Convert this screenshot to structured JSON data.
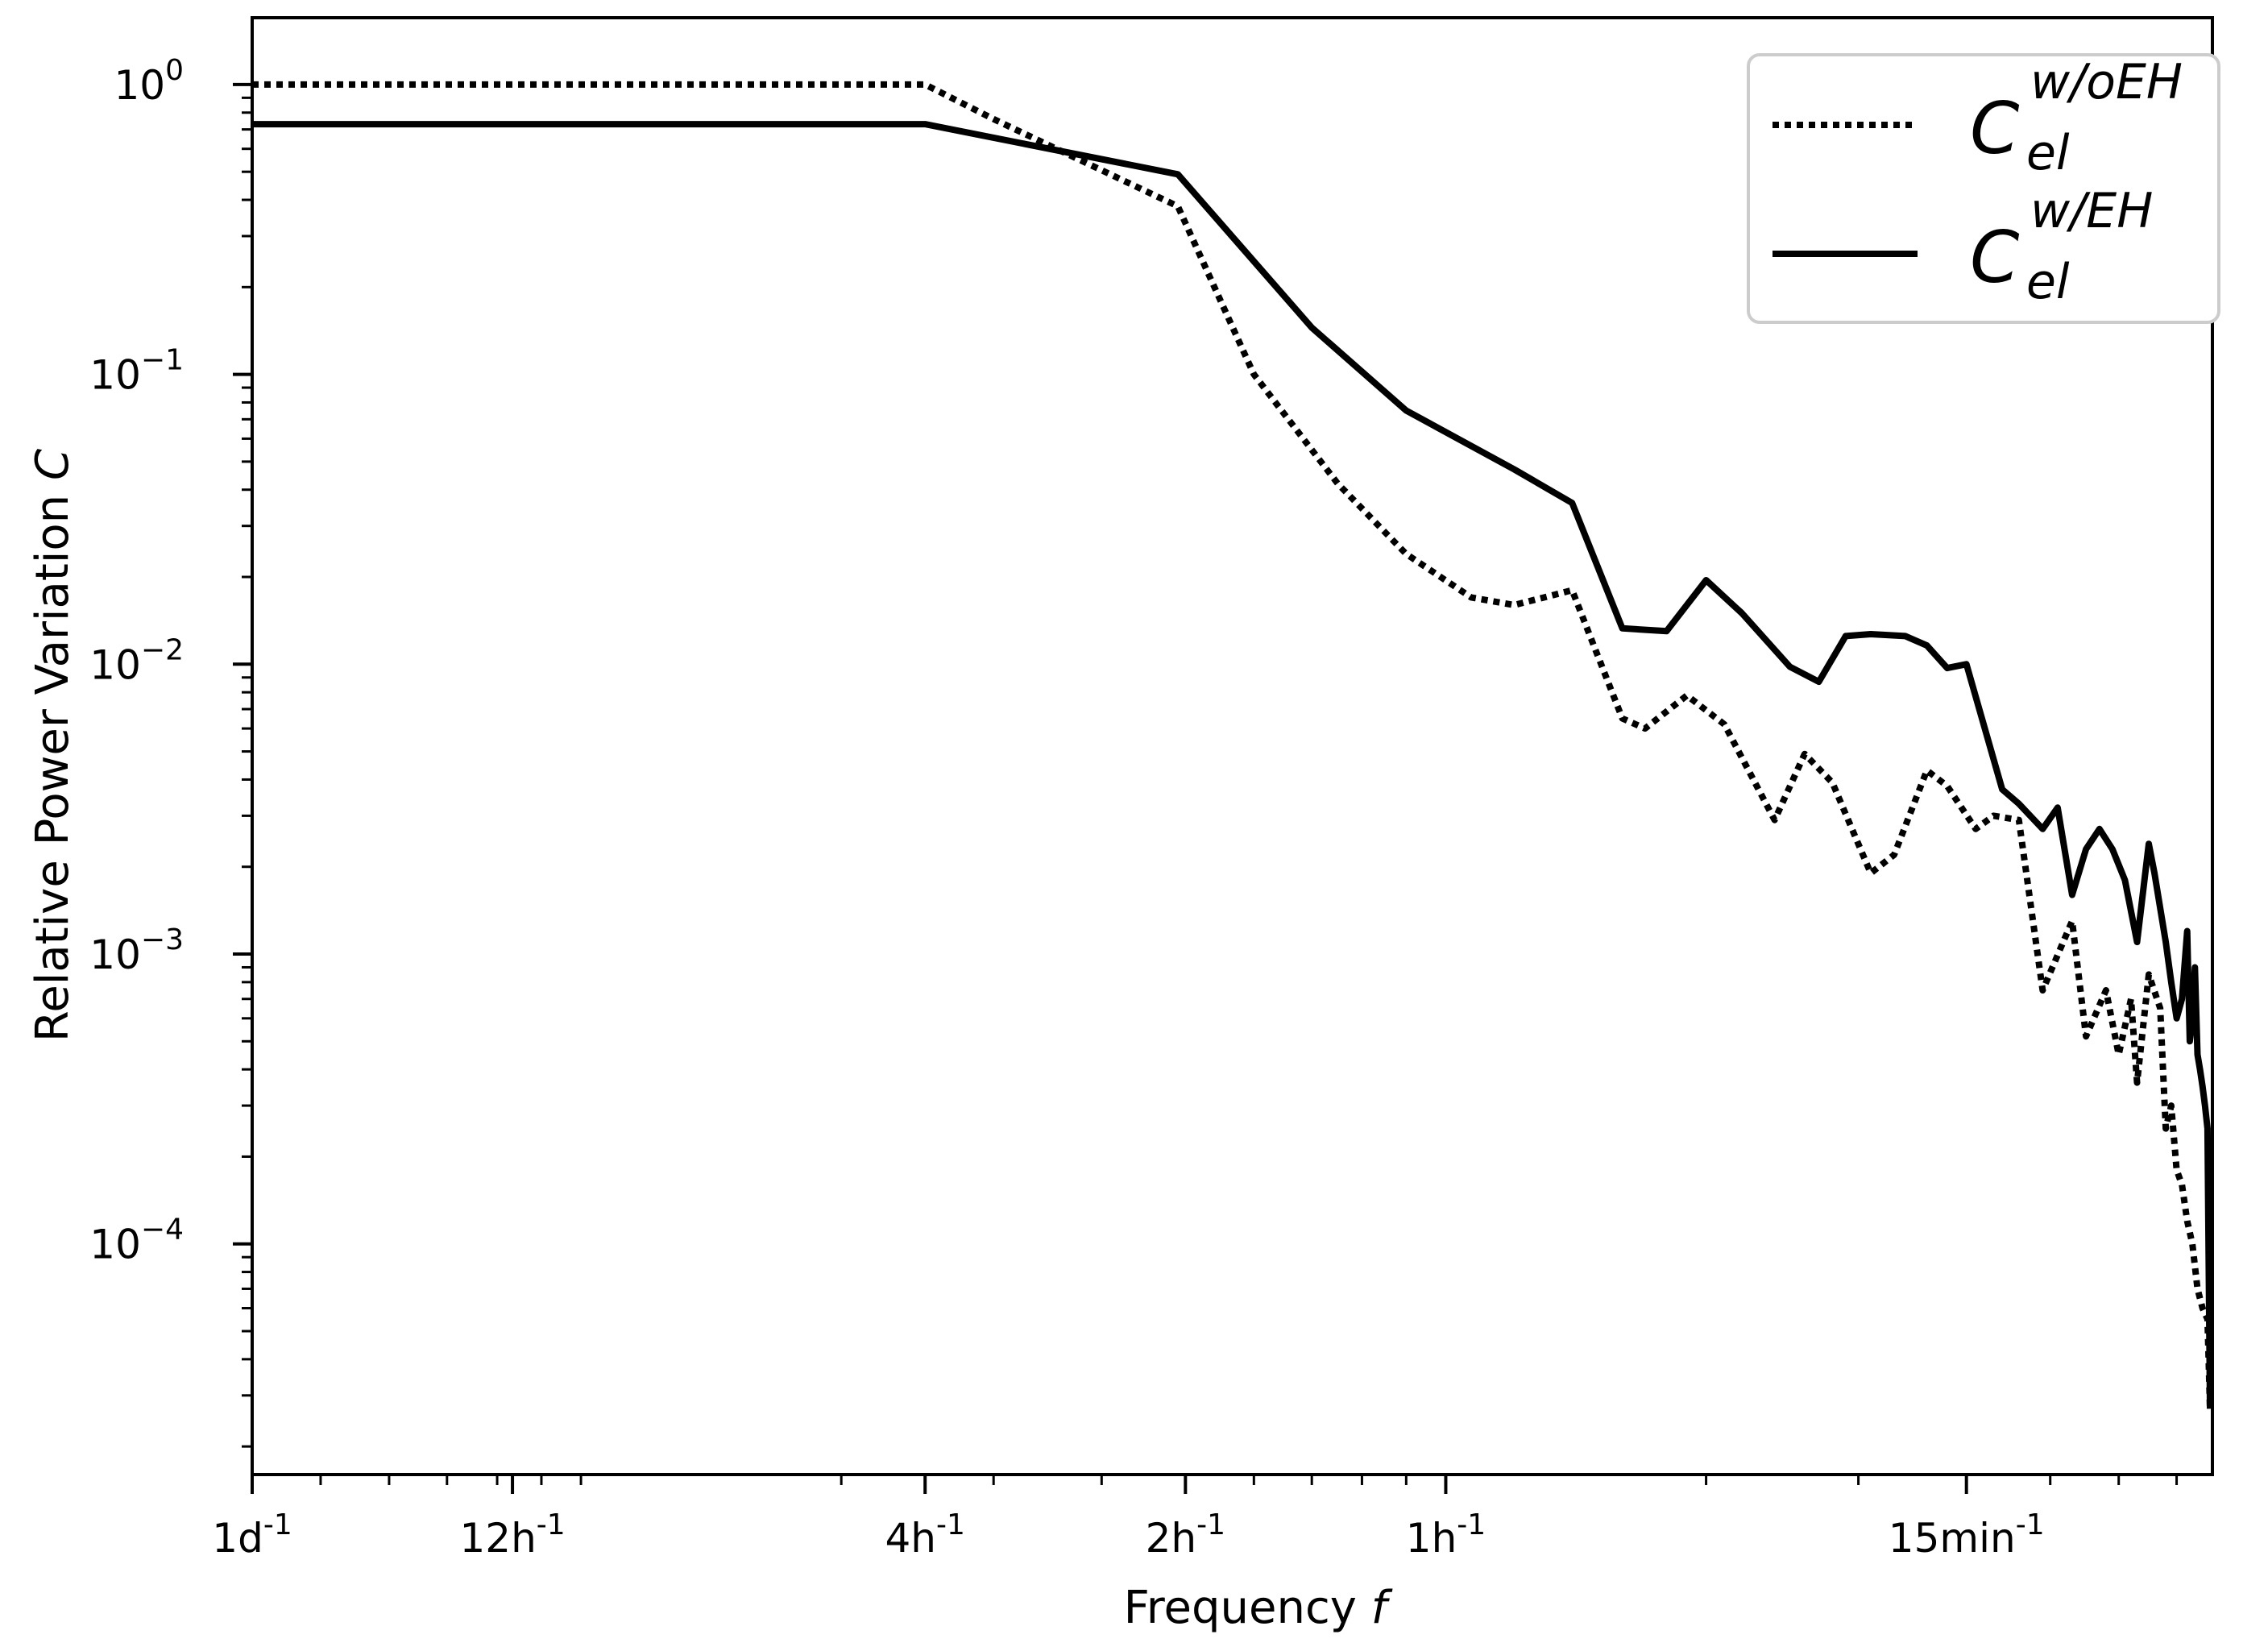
{
  "chart_data": {
    "type": "line",
    "title": "",
    "xlabel": "Frequency",
    "xlabel_symbol": "f",
    "ylabel": "Relative Power Variation",
    "ylabel_symbol": "C",
    "xscale": "log",
    "yscale": "log",
    "unit_x": "per hour",
    "xlim": [
      0.04167,
      7.7
    ],
    "ylim": [
      1.6e-05,
      1.7
    ],
    "legend_position": "top-right",
    "x_ticks": [
      {
        "label": "1d",
        "exp": "-1",
        "value": 0.04167
      },
      {
        "label": "12h",
        "exp": "-1",
        "value": 0.08333
      },
      {
        "label": "4h",
        "exp": "-1",
        "value": 0.25
      },
      {
        "label": "2h",
        "exp": "-1",
        "value": 0.5
      },
      {
        "label": "1h",
        "exp": "-1",
        "value": 1
      },
      {
        "label": "15min",
        "exp": "-1",
        "value": 4
      }
    ],
    "y_ticks": [
      {
        "base": "10",
        "exp": "0",
        "value": 1
      },
      {
        "base": "10",
        "exp": "−1",
        "value": 0.1
      },
      {
        "base": "10",
        "exp": "−2",
        "value": 0.01
      },
      {
        "base": "10",
        "exp": "−3",
        "value": 0.001
      },
      {
        "base": "10",
        "exp": "−4",
        "value": 0.0001
      }
    ],
    "series": [
      {
        "name": "C_el^w/oEH",
        "symbol": "C",
        "subscript": "el",
        "superscript": "w/oEH",
        "style": "dotted",
        "color": "#000000",
        "points": [
          [
            0.04167,
            1.0
          ],
          [
            0.25,
            1.0
          ],
          [
            0.3,
            0.76
          ],
          [
            0.49,
            0.38
          ],
          [
            0.6,
            0.1
          ],
          [
            0.75,
            0.042
          ],
          [
            0.9,
            0.024
          ],
          [
            1.07,
            0.017
          ],
          [
            1.2,
            0.016
          ],
          [
            1.4,
            0.018
          ],
          [
            1.6,
            0.0065
          ],
          [
            1.7,
            0.006
          ],
          [
            1.9,
            0.0078
          ],
          [
            2.1,
            0.0062
          ],
          [
            2.4,
            0.0029
          ],
          [
            2.6,
            0.0049
          ],
          [
            2.8,
            0.0039
          ],
          [
            3.1,
            0.0019
          ],
          [
            3.3,
            0.0022
          ],
          [
            3.6,
            0.0043
          ],
          [
            3.8,
            0.0038
          ],
          [
            4.1,
            0.0027
          ],
          [
            4.3,
            0.003
          ],
          [
            4.6,
            0.0029
          ],
          [
            4.9,
            0.00075
          ],
          [
            5.3,
            0.0013
          ],
          [
            5.5,
            0.00052
          ],
          [
            5.8,
            0.00075
          ],
          [
            6.0,
            0.00045
          ],
          [
            6.2,
            0.0007
          ],
          [
            6.3,
            0.00036
          ],
          [
            6.5,
            0.00085
          ],
          [
            6.7,
            0.00065
          ],
          [
            6.8,
            0.00025
          ],
          [
            6.9,
            0.0003
          ],
          [
            7.0,
            0.00018
          ],
          [
            7.1,
            0.00016
          ],
          [
            7.2,
            0.00012
          ],
          [
            7.3,
            0.0001
          ],
          [
            7.4,
            7e-05
          ],
          [
            7.5,
            6e-05
          ],
          [
            7.6,
            5.5e-05
          ],
          [
            7.65,
            2.7e-05
          ]
        ]
      },
      {
        "name": "C_el^w/EH",
        "symbol": "C",
        "subscript": "el",
        "superscript": "w/EH",
        "style": "solid",
        "color": "#000000",
        "points": [
          [
            0.04167,
            0.73
          ],
          [
            0.25,
            0.73
          ],
          [
            0.49,
            0.49
          ],
          [
            0.7,
            0.145
          ],
          [
            0.9,
            0.075
          ],
          [
            1.2,
            0.047
          ],
          [
            1.4,
            0.036
          ],
          [
            1.6,
            0.0133
          ],
          [
            1.8,
            0.013
          ],
          [
            2.0,
            0.0195
          ],
          [
            2.2,
            0.015
          ],
          [
            2.5,
            0.0098
          ],
          [
            2.7,
            0.0087
          ],
          [
            2.9,
            0.0125
          ],
          [
            3.1,
            0.0127
          ],
          [
            3.4,
            0.0125
          ],
          [
            3.6,
            0.0116
          ],
          [
            3.8,
            0.0097
          ],
          [
            4.0,
            0.01
          ],
          [
            4.4,
            0.0037
          ],
          [
            4.6,
            0.0033
          ],
          [
            4.9,
            0.0027
          ],
          [
            5.1,
            0.0032
          ],
          [
            5.3,
            0.0016
          ],
          [
            5.5,
            0.0023
          ],
          [
            5.7,
            0.0027
          ],
          [
            5.9,
            0.0023
          ],
          [
            6.1,
            0.0018
          ],
          [
            6.3,
            0.0011
          ],
          [
            6.5,
            0.0024
          ],
          [
            6.6,
            0.0019
          ],
          [
            6.8,
            0.0011
          ],
          [
            6.9,
            0.0008
          ],
          [
            7.0,
            0.0006
          ],
          [
            7.1,
            0.0007
          ],
          [
            7.2,
            0.0012
          ],
          [
            7.25,
            0.0005
          ],
          [
            7.3,
            0.0006
          ],
          [
            7.35,
            0.0009
          ],
          [
            7.4,
            0.00045
          ],
          [
            7.45,
            0.0004
          ],
          [
            7.5,
            0.00035
          ],
          [
            7.55,
            0.0003
          ],
          [
            7.6,
            0.00025
          ],
          [
            7.65,
            2.7e-05
          ]
        ]
      }
    ]
  }
}
